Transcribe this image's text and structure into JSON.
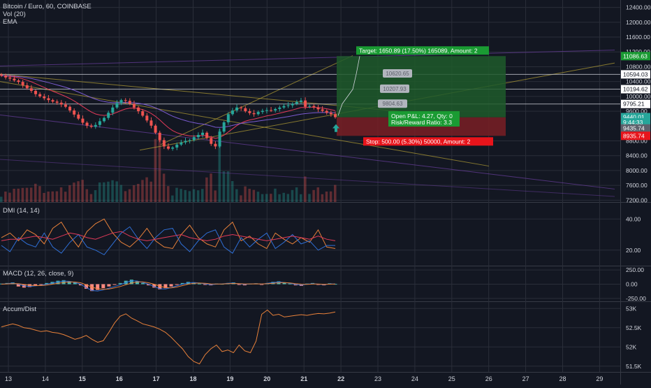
{
  "header": {
    "symbol": "Bitcoin / Euro, 60, COINBASE",
    "indicators": [
      "Vol (20)",
      "EMA"
    ]
  },
  "colors": {
    "background": "#131722",
    "grid": "#2a2e39",
    "up": "#26a69a",
    "down": "#ef5350",
    "profit_zone": "#1e5a2a",
    "loss_zone": "#7a1f25",
    "target": "#1a9b33",
    "stop": "#e8141b"
  },
  "chart_data": [
    {
      "type": "candlestick",
      "name": "price",
      "price_axis": {
        "ticks": [
          "12400.00",
          "12000.00",
          "11600.00",
          "11200.00",
          "10800.00",
          "10400.00",
          "10000.00",
          "9600.00",
          "8800.00",
          "8400.00",
          "8000.00",
          "7600.00",
          "7200.00"
        ],
        "tick_values": [
          12400,
          12000,
          11600,
          11200,
          10800,
          10400,
          10000,
          9600,
          8800,
          8400,
          8000,
          7600,
          7200
        ],
        "markers": [
          {
            "label": "11086.63",
            "value": 11086.63,
            "bg": "#1a9b33",
            "fg": "#ffffff"
          },
          {
            "label": "10594.03",
            "value": 10594.03,
            "bg": "#ffffff",
            "fg": "#131722"
          },
          {
            "label": "10194.62",
            "value": 10194.62,
            "bg": "#ffffff",
            "fg": "#131722"
          },
          {
            "label": "9795.21",
            "value": 9795.21,
            "bg": "#ffffff",
            "fg": "#131722"
          },
          {
            "label": "9440.01",
            "value": 9440.01,
            "bg": "#26a69a",
            "fg": "#ffffff"
          },
          {
            "label": "9:44:33",
            "value": 9300,
            "bg": "#26a69a",
            "fg": "#ffffff"
          },
          {
            "label": "9435.74",
            "value": 9135,
            "bg": "#5d606b",
            "fg": "#ffffff"
          },
          {
            "label": "8935.74",
            "value": 8935.74,
            "bg": "#e8141b",
            "fg": "#ffffff"
          }
        ],
        "range": [
          7150,
          12600
        ]
      },
      "x_axis": {
        "ticks": [
          "13",
          "14",
          "15",
          "16",
          "17",
          "18",
          "19",
          "20",
          "21",
          "22",
          "23",
          "24",
          "25",
          "26",
          "27",
          "28",
          "29"
        ],
        "bold": [
          "15",
          "16",
          "17",
          "18",
          "19",
          "20",
          "21",
          "22"
        ]
      },
      "candles_close_path": [
        10560,
        10510,
        10480,
        10430,
        10390,
        10300,
        10220,
        10150,
        10060,
        10000,
        9950,
        9900,
        9860,
        9830,
        9780,
        9720,
        9620,
        9510,
        9400,
        9290,
        9210,
        9180,
        9230,
        9330,
        9420,
        9560,
        9700,
        9820,
        9900,
        9880,
        9800,
        9700,
        9600,
        9480,
        9350,
        9210,
        9020,
        8820,
        8650,
        8590,
        8620,
        8700,
        8760,
        8800,
        8820,
        8900,
        8960,
        9020,
        8880,
        8720,
        8650,
        9050,
        9300,
        9520,
        9620,
        9700,
        9680,
        9600,
        9550,
        9520,
        9580,
        9610,
        9630,
        9620,
        9660,
        9700,
        9740,
        9760,
        9800,
        9850,
        9890,
        9720,
        9740,
        9700,
        9650,
        9610,
        9560,
        9520,
        9440
      ],
      "horizontal_levels": [
        10594.03,
        10194.62,
        9795.21
      ],
      "position": {
        "entry": 9435.74,
        "target_price": 11086.63,
        "stop_price": 8935.74,
        "target_label": "Target: 1650.89 (17.50%) 165089, Amount: 2",
        "stop_label": "Stop: 500.00 (5.30%) 50000, Amount: 2",
        "pnl_label": "Open P&L: 4.27, Qty: 0",
        "rr_label": "Risk/Reward Ratio: 3.3"
      },
      "projection_labels": [
        {
          "label": "10620.65",
          "value": 10620.65
        },
        {
          "label": "10207.93",
          "value": 10207.93
        },
        {
          "label": "9804.63",
          "value": 9804.63
        }
      ]
    },
    {
      "type": "line",
      "name": "DMI (14, 14)",
      "ticks": [
        "40.00",
        "20.00"
      ],
      "tick_values": [
        40,
        20
      ],
      "range": [
        10,
        50
      ],
      "series": [
        {
          "color": "#e8813a",
          "values": [
            28,
            31,
            26,
            33,
            30,
            24,
            34,
            38,
            29,
            22,
            32,
            37,
            40,
            31,
            25,
            22,
            27,
            34,
            26,
            22,
            21,
            30,
            36,
            28,
            24,
            22,
            33,
            38,
            26,
            29,
            24,
            21,
            31,
            27,
            24,
            28,
            25,
            33,
            22,
            21
          ]
        },
        {
          "color": "#2f6fd6",
          "values": [
            23,
            19,
            28,
            24,
            22,
            31,
            22,
            18,
            25,
            30,
            22,
            20,
            17,
            24,
            31,
            35,
            27,
            21,
            28,
            33,
            34,
            24,
            19,
            26,
            31,
            33,
            22,
            18,
            28,
            22,
            27,
            31,
            21,
            25,
            30,
            24,
            26,
            20,
            23,
            23
          ]
        },
        {
          "color": "#e23a59",
          "values": [
            26,
            27,
            27,
            28,
            29,
            28,
            27,
            29,
            31,
            30,
            28,
            27,
            29,
            31,
            32,
            29,
            27,
            26,
            27,
            28,
            29,
            30,
            28,
            27,
            26,
            27,
            29,
            30,
            29,
            28,
            27,
            26,
            27,
            28,
            29,
            28,
            27,
            29,
            27,
            26
          ]
        }
      ]
    },
    {
      "type": "bar",
      "name": "MACD (12, 26, close, 9)",
      "ticks": [
        "250.00",
        "0.00",
        "-250.00"
      ],
      "tick_values": [
        250,
        0,
        -250
      ],
      "range": [
        -300,
        300
      ],
      "histogram": [
        10,
        20,
        30,
        -40,
        -60,
        -50,
        -30,
        -10,
        20,
        40,
        60,
        70,
        50,
        30,
        -20,
        -80,
        -120,
        -100,
        -70,
        -40,
        -10,
        20,
        60,
        80,
        50,
        20,
        -20,
        -60,
        -90,
        -70,
        -40,
        -10,
        20,
        40,
        30,
        10,
        -10,
        -20,
        10,
        5,
        20,
        30,
        -10,
        -20,
        10,
        15,
        -10,
        20,
        40,
        50,
        30,
        10,
        -20,
        -30,
        10,
        20,
        -10,
        -20,
        15,
        5
      ],
      "macd_line": [
        0,
        10,
        20,
        0,
        -30,
        -40,
        -30,
        -20,
        0,
        20,
        40,
        55,
        50,
        30,
        0,
        -60,
        -110,
        -120,
        -100,
        -70,
        -40,
        -10,
        30,
        60,
        55,
        30,
        0,
        -40,
        -80,
        -85,
        -60,
        -30,
        0,
        25,
        30,
        20,
        5,
        -10,
        0,
        5,
        15,
        20,
        5,
        -5,
        5,
        10,
        0,
        15,
        30,
        40,
        30,
        15,
        -5,
        -15,
        0,
        10,
        0,
        -10,
        5,
        5
      ],
      "signal_line": [
        0,
        5,
        10,
        8,
        -5,
        -20,
        -25,
        -24,
        -15,
        0,
        15,
        30,
        40,
        38,
        25,
        -10,
        -50,
        -80,
        -90,
        -85,
        -65,
        -40,
        -10,
        20,
        40,
        40,
        25,
        0,
        -35,
        -60,
        -65,
        -50,
        -25,
        0,
        15,
        20,
        15,
        5,
        2,
        3,
        8,
        12,
        10,
        5,
        5,
        6,
        5,
        8,
        15,
        25,
        28,
        22,
        10,
        0,
        -3,
        2,
        3,
        -2,
        0,
        2
      ]
    },
    {
      "type": "line",
      "name": "Accum/Dist",
      "ticks": [
        "53K",
        "52.5K",
        "52K",
        "51.5K"
      ],
      "tick_values": [
        53000,
        52500,
        52000,
        51500
      ],
      "range": [
        51350,
        53150
      ],
      "series": [
        {
          "color": "#e8813a",
          "values": [
            52520,
            52560,
            52600,
            52560,
            52500,
            52480,
            52440,
            52400,
            52420,
            52380,
            52360,
            52320,
            52260,
            52200,
            52240,
            52300,
            52200,
            52120,
            52160,
            52380,
            52620,
            52800,
            52860,
            52750,
            52680,
            52600,
            52560,
            52520,
            52460,
            52380,
            52250,
            52100,
            51950,
            51750,
            51620,
            51560,
            51800,
            51950,
            52050,
            51880,
            51920,
            51850,
            52050,
            51900,
            51850,
            52150,
            52850,
            52960,
            52820,
            52850,
            52780,
            52800,
            52820,
            52840,
            52820,
            52850,
            52870,
            52860,
            52880,
            52910
          ]
        }
      ]
    }
  ]
}
